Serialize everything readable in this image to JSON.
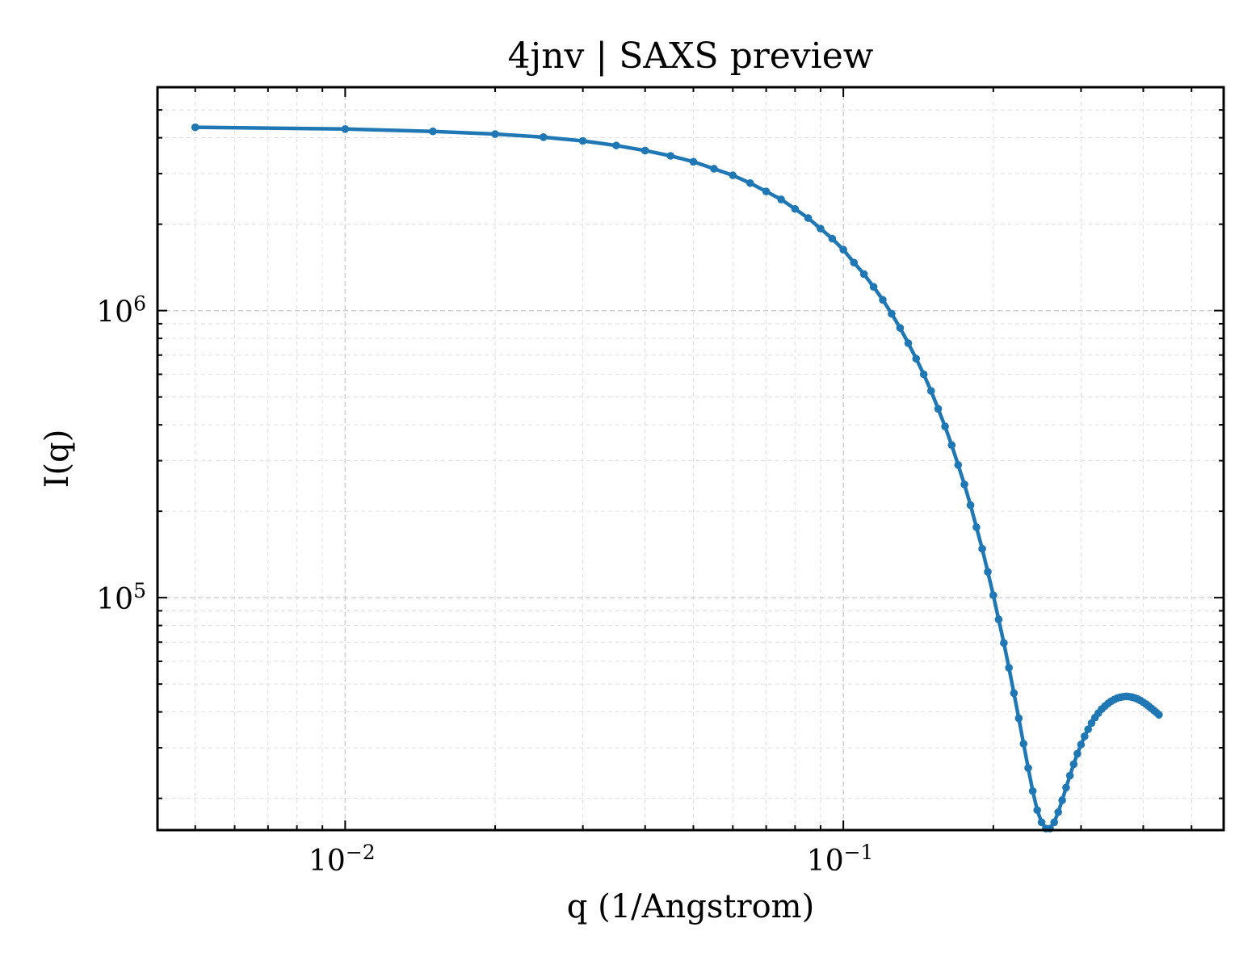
{
  "chart_data": {
    "type": "line",
    "title": "4jnv | SAXS preview",
    "xlabel": "q (1/Angstrom)",
    "ylabel": "I(q)",
    "xscale": "log",
    "yscale": "log",
    "xlim": [
      0.0042,
      0.58
    ],
    "ylim": [
      15500,
      6000000
    ],
    "grid": true,
    "grid_minor": true,
    "legend": "none",
    "line_color": "#1f77b4",
    "marker": "circle",
    "x_ticks": [
      {
        "value": 0.01,
        "base": "10",
        "exp": "−2"
      },
      {
        "value": 0.1,
        "base": "10",
        "exp": "−1"
      }
    ],
    "y_ticks": [
      {
        "value": 100000,
        "base": "10",
        "exp": "5"
      },
      {
        "value": 1000000,
        "base": "10",
        "exp": "6"
      }
    ],
    "series": [
      {
        "values": [
          [
            0.005,
            4350000
          ],
          [
            0.01,
            4290000
          ],
          [
            0.015,
            4210000
          ],
          [
            0.02,
            4120000
          ],
          [
            0.025,
            4020000
          ],
          [
            0.03,
            3900000
          ],
          [
            0.035,
            3760000
          ],
          [
            0.04,
            3610000
          ],
          [
            0.045,
            3460000
          ],
          [
            0.05,
            3300000
          ],
          [
            0.055,
            3120000
          ],
          [
            0.06,
            2960000
          ],
          [
            0.065,
            2780000
          ],
          [
            0.07,
            2600000
          ],
          [
            0.075,
            2440000
          ],
          [
            0.08,
            2260000
          ],
          [
            0.085,
            2100000
          ],
          [
            0.09,
            1930000
          ],
          [
            0.095,
            1780000
          ],
          [
            0.1,
            1630000
          ],
          [
            0.105,
            1470000
          ],
          [
            0.11,
            1340000
          ],
          [
            0.115,
            1210000
          ],
          [
            0.12,
            1090000
          ],
          [
            0.125,
            975000
          ],
          [
            0.13,
            870000
          ],
          [
            0.135,
            770000
          ],
          [
            0.14,
            680000
          ],
          [
            0.145,
            600000
          ],
          [
            0.15,
            525000
          ],
          [
            0.155,
            455000
          ],
          [
            0.16,
            395000
          ],
          [
            0.165,
            340000
          ],
          [
            0.17,
            290000
          ],
          [
            0.175,
            248000
          ],
          [
            0.18,
            210000
          ],
          [
            0.185,
            176000
          ],
          [
            0.19,
            148000
          ],
          [
            0.195,
            123000
          ],
          [
            0.2,
            102000
          ],
          [
            0.205,
            84000
          ],
          [
            0.21,
            69500
          ],
          [
            0.215,
            57000
          ],
          [
            0.22,
            46500
          ],
          [
            0.225,
            38000
          ],
          [
            0.23,
            31000
          ],
          [
            0.235,
            25500
          ],
          [
            0.24,
            21200
          ],
          [
            0.245,
            18200
          ],
          [
            0.25,
            16500
          ],
          [
            0.255,
            15700
          ],
          [
            0.26,
            15700
          ],
          [
            0.265,
            16500
          ],
          [
            0.27,
            17900
          ],
          [
            0.275,
            19700
          ],
          [
            0.28,
            21800
          ],
          [
            0.285,
            24000
          ],
          [
            0.29,
            26300
          ],
          [
            0.295,
            28600
          ],
          [
            0.3,
            30800
          ],
          [
            0.305,
            32900
          ],
          [
            0.31,
            34800
          ],
          [
            0.315,
            36600
          ],
          [
            0.32,
            38200
          ],
          [
            0.325,
            39600
          ],
          [
            0.33,
            40900
          ],
          [
            0.335,
            41900
          ],
          [
            0.34,
            42800
          ],
          [
            0.345,
            43600
          ],
          [
            0.35,
            44200
          ],
          [
            0.355,
            44700
          ],
          [
            0.36,
            45000
          ],
          [
            0.365,
            45200
          ],
          [
            0.37,
            45300
          ],
          [
            0.375,
            45200
          ],
          [
            0.38,
            45000
          ],
          [
            0.385,
            44700
          ],
          [
            0.39,
            44300
          ],
          [
            0.395,
            43800
          ],
          [
            0.4,
            43200
          ],
          [
            0.405,
            42600
          ],
          [
            0.41,
            41900
          ],
          [
            0.415,
            41200
          ],
          [
            0.42,
            40500
          ],
          [
            0.425,
            39800
          ],
          [
            0.43,
            39100
          ]
        ]
      }
    ]
  }
}
